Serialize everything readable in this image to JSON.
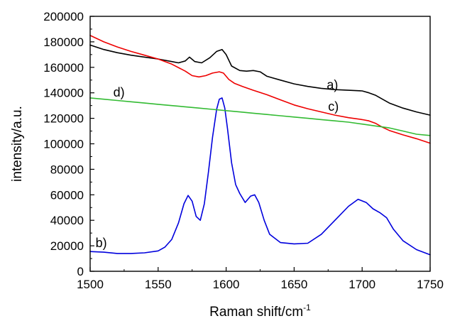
{
  "chart_data": {
    "type": "line",
    "title": "",
    "xlabel": "Raman shift/cm",
    "xlabel_sup": "-1",
    "ylabel": "intensity/a.u.",
    "xlim": [
      1500,
      1750
    ],
    "ylim": [
      0,
      200000
    ],
    "x_ticks": [
      "1500",
      "1550",
      "1600",
      "1650",
      "1700",
      "1750"
    ],
    "y_ticks": [
      "0",
      "20000",
      "40000",
      "60000",
      "80000",
      "100000",
      "120000",
      "140000",
      "160000",
      "180000",
      "200000"
    ],
    "grid": false,
    "legend": "none",
    "series": [
      {
        "label": "a)",
        "color": "#000000",
        "label_at": [
          1674,
          143000
        ],
        "x": [
          1500,
          1510,
          1520,
          1530,
          1540,
          1550,
          1560,
          1565,
          1570,
          1573,
          1577,
          1582,
          1588,
          1593,
          1597,
          1600,
          1604,
          1610,
          1615,
          1620,
          1625,
          1630,
          1640,
          1650,
          1660,
          1670,
          1680,
          1690,
          1700,
          1705,
          1710,
          1715,
          1720,
          1730,
          1740,
          1750
        ],
        "values": [
          177500,
          174000,
          171500,
          169500,
          168000,
          166500,
          164500,
          163500,
          165000,
          168000,
          164500,
          163500,
          167500,
          172500,
          174000,
          170000,
          161000,
          157500,
          157000,
          157500,
          156500,
          153000,
          150000,
          147000,
          145000,
          143500,
          142500,
          142000,
          141500,
          140000,
          138000,
          135000,
          132000,
          128000,
          125000,
          122500
        ]
      },
      {
        "label": "b)",
        "color": "#0000dd",
        "label_at": [
          1504,
          19000
        ],
        "x": [
          1500,
          1510,
          1520,
          1530,
          1540,
          1550,
          1555,
          1560,
          1565,
          1569,
          1572,
          1575,
          1578,
          1581,
          1584,
          1587,
          1590,
          1593,
          1595,
          1597,
          1599,
          1601,
          1604,
          1607,
          1610,
          1614,
          1618,
          1621,
          1624,
          1628,
          1632,
          1640,
          1650,
          1660,
          1670,
          1680,
          1690,
          1697,
          1703,
          1708,
          1713,
          1718,
          1723,
          1730,
          1740,
          1750
        ],
        "values": [
          15500,
          15000,
          14000,
          14000,
          14500,
          16000,
          19000,
          25000,
          38000,
          53000,
          59500,
          55000,
          43000,
          40000,
          53000,
          78000,
          105000,
          127000,
          135000,
          136000,
          128000,
          112000,
          85000,
          68000,
          61000,
          54000,
          59000,
          60000,
          54000,
          40000,
          29000,
          22500,
          21500,
          22000,
          29000,
          40000,
          51000,
          56500,
          54000,
          49000,
          46000,
          42000,
          33000,
          24000,
          17000,
          13000
        ]
      },
      {
        "label": "c)",
        "color": "#ee0000",
        "label_at": [
          1675,
          126000
        ],
        "x": [
          1500,
          1510,
          1520,
          1530,
          1540,
          1550,
          1560,
          1570,
          1575,
          1580,
          1585,
          1590,
          1595,
          1598,
          1602,
          1606,
          1612,
          1620,
          1630,
          1640,
          1650,
          1660,
          1670,
          1680,
          1690,
          1700,
          1705,
          1710,
          1715,
          1720,
          1730,
          1740,
          1750
        ],
        "values": [
          185000,
          180000,
          176000,
          172500,
          169500,
          166500,
          162500,
          157000,
          153500,
          152500,
          153500,
          155500,
          156500,
          155500,
          150500,
          147500,
          145000,
          142000,
          138500,
          134500,
          130500,
          127500,
          125000,
          122500,
          120500,
          119000,
          118000,
          116000,
          113000,
          110500,
          107000,
          104000,
          100500
        ]
      },
      {
        "label": "d)",
        "color": "#33bb33",
        "label_at": [
          1517,
          137000
        ],
        "x": [
          1500,
          1510,
          1520,
          1530,
          1540,
          1550,
          1560,
          1570,
          1580,
          1590,
          1600,
          1610,
          1620,
          1630,
          1640,
          1650,
          1660,
          1670,
          1680,
          1690,
          1700,
          1710,
          1720,
          1730,
          1740,
          1750
        ],
        "values": [
          136000,
          135000,
          134000,
          133000,
          132000,
          131000,
          130000,
          129000,
          128000,
          127000,
          126000,
          125000,
          124000,
          123000,
          122000,
          121000,
          120000,
          119000,
          118000,
          117000,
          115500,
          114000,
          112500,
          110000,
          107500,
          106500
        ]
      }
    ]
  }
}
